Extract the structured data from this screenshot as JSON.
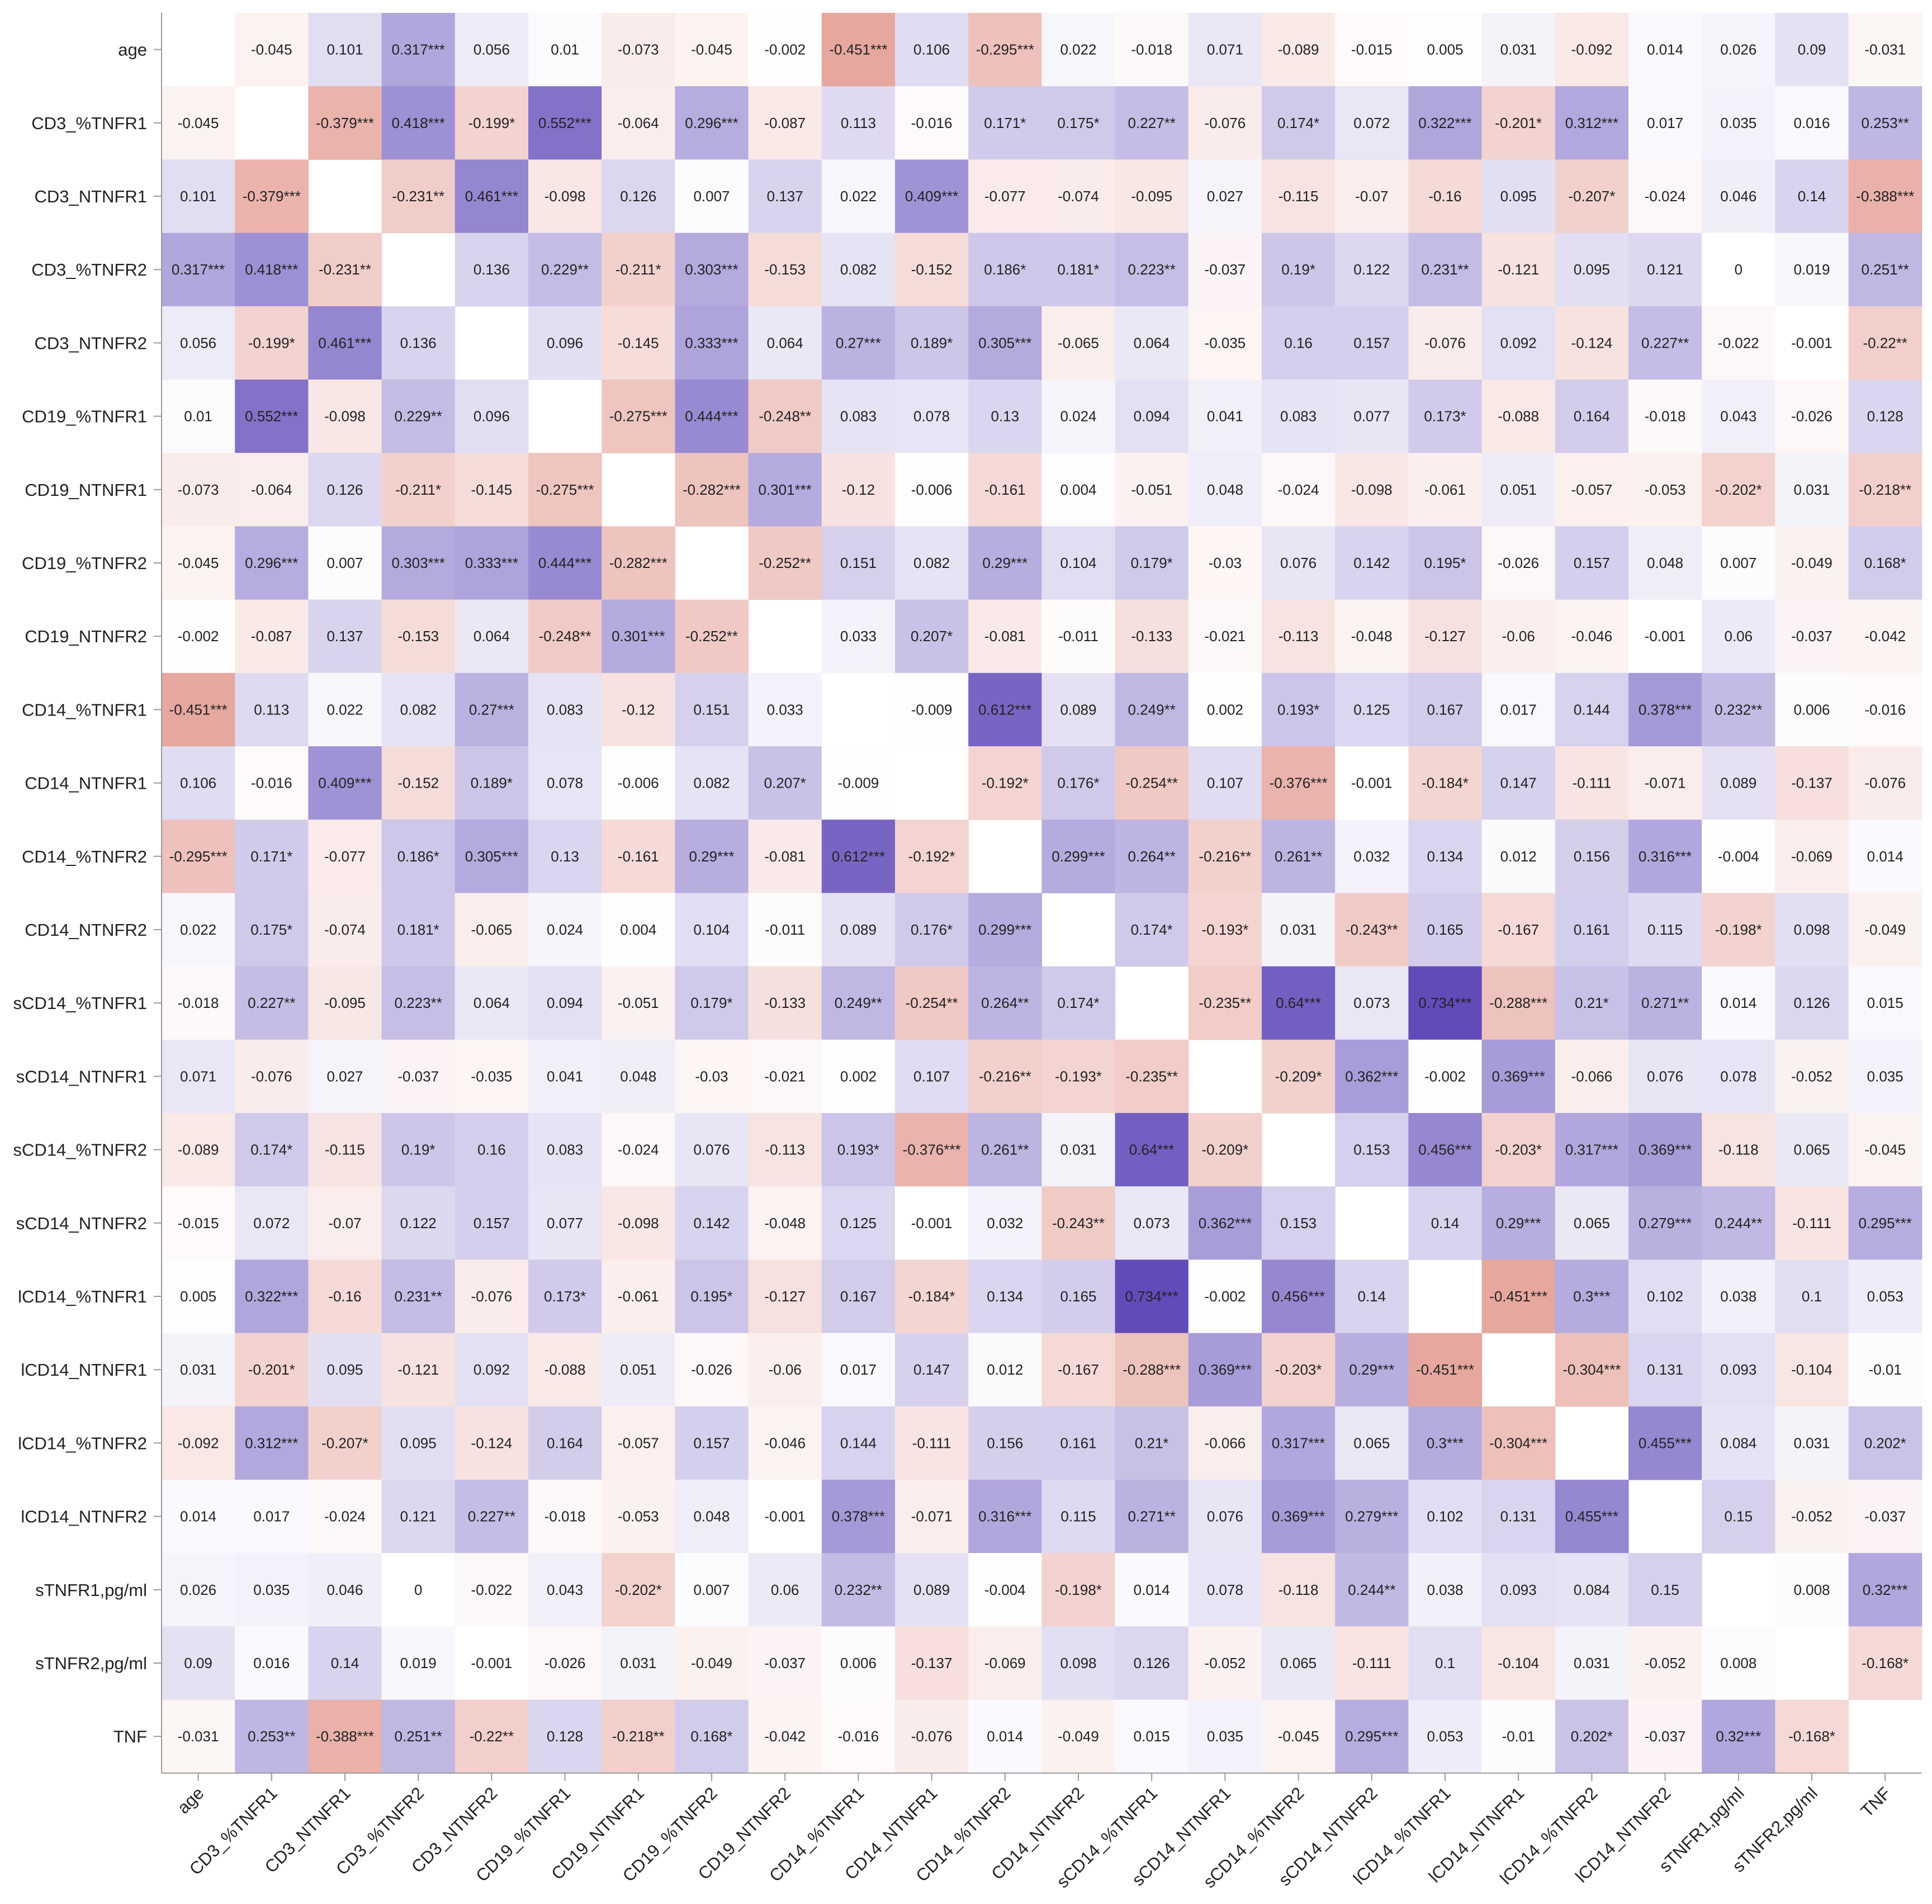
{
  "chart_data": {
    "type": "heatmap",
    "title": "",
    "xlabel": "",
    "ylabel": "",
    "labels": [
      "age",
      "CD3_%TNFR1",
      "CD3_NTNFR1",
      "CD3_%TNFR2",
      "CD3_NTNFR2",
      "CD19_%TNFR1",
      "CD19_NTNFR1",
      "CD19_%TNFR2",
      "CD19_NTNFR2",
      "CD14_%TNFR1",
      "CD14_NTNFR1",
      "CD14_%TNFR2",
      "CD14_NTNFR2",
      "sCD14_%TNFR1",
      "sCD14_NTNFR1",
      "sCD14_%TNFR2",
      "sCD14_NTNFR2",
      "lCD14_%TNFR1",
      "lCD14_NTNFR1",
      "lCD14_%TNFR2",
      "lCD14_NTNFR2",
      "sTNFR1,pg/ml",
      "sTNFR2,pg/ml",
      "TNF"
    ],
    "matrix": [
      [
        "",
        "-0.045",
        "0.101",
        "0.317***",
        "0.056",
        "0.01",
        "-0.073",
        "-0.045",
        "-0.002",
        "-0.451***",
        "0.106",
        "-0.295***",
        "0.022",
        "-0.018",
        "0.071",
        "-0.089",
        "-0.015",
        "0.005",
        "0.031",
        "-0.092",
        "0.014",
        "0.026",
        "0.09",
        "-0.031"
      ],
      [
        "-0.045",
        "",
        "-0.379***",
        "0.418***",
        "-0.199*",
        "0.552***",
        "-0.064",
        "0.296***",
        "-0.087",
        "0.113",
        "-0.016",
        "0.171*",
        "0.175*",
        "0.227**",
        "-0.076",
        "0.174*",
        "0.072",
        "0.322***",
        "-0.201*",
        "0.312***",
        "0.017",
        "0.035",
        "0.016",
        "0.253**"
      ],
      [
        "0.101",
        "-0.379***",
        "",
        "-0.231**",
        "0.461***",
        "-0.098",
        "0.126",
        "0.007",
        "0.137",
        "0.022",
        "0.409***",
        "-0.077",
        "-0.074",
        "-0.095",
        "0.027",
        "-0.115",
        "-0.07",
        "-0.16",
        "0.095",
        "-0.207*",
        "-0.024",
        "0.046",
        "0.14",
        "-0.388***"
      ],
      [
        "0.317***",
        "0.418***",
        "-0.231**",
        "",
        "0.136",
        "0.229**",
        "-0.211*",
        "0.303***",
        "-0.153",
        "0.082",
        "-0.152",
        "0.186*",
        "0.181*",
        "0.223**",
        "-0.037",
        "0.19*",
        "0.122",
        "0.231**",
        "-0.121",
        "0.095",
        "0.121",
        "0",
        "0.019",
        "0.251**"
      ],
      [
        "0.056",
        "-0.199*",
        "0.461***",
        "0.136",
        "",
        "0.096",
        "-0.145",
        "0.333***",
        "0.064",
        "0.27***",
        "0.189*",
        "0.305***",
        "-0.065",
        "0.064",
        "-0.035",
        "0.16",
        "0.157",
        "-0.076",
        "0.092",
        "-0.124",
        "0.227**",
        "-0.022",
        "-0.001",
        "-0.22**"
      ],
      [
        "0.01",
        "0.552***",
        "-0.098",
        "0.229**",
        "0.096",
        "",
        "-0.275***",
        "0.444***",
        "-0.248**",
        "0.083",
        "0.078",
        "0.13",
        "0.024",
        "0.094",
        "0.041",
        "0.083",
        "0.077",
        "0.173*",
        "-0.088",
        "0.164",
        "-0.018",
        "0.043",
        "-0.026",
        "0.128"
      ],
      [
        "-0.073",
        "-0.064",
        "0.126",
        "-0.211*",
        "-0.145",
        "-0.275***",
        "",
        "-0.282***",
        "0.301***",
        "-0.12",
        "-0.006",
        "-0.161",
        "0.004",
        "-0.051",
        "0.048",
        "-0.024",
        "-0.098",
        "-0.061",
        "0.051",
        "-0.057",
        "-0.053",
        "-0.202*",
        "0.031",
        "-0.218**"
      ],
      [
        "-0.045",
        "0.296***",
        "0.007",
        "0.303***",
        "0.333***",
        "0.444***",
        "-0.282***",
        "",
        "-0.252**",
        "0.151",
        "0.082",
        "0.29***",
        "0.104",
        "0.179*",
        "-0.03",
        "0.076",
        "0.142",
        "0.195*",
        "-0.026",
        "0.157",
        "0.048",
        "0.007",
        "-0.049",
        "0.168*"
      ],
      [
        "-0.002",
        "-0.087",
        "0.137",
        "-0.153",
        "0.064",
        "-0.248**",
        "0.301***",
        "-0.252**",
        "",
        "0.033",
        "0.207*",
        "-0.081",
        "-0.011",
        "-0.133",
        "-0.021",
        "-0.113",
        "-0.048",
        "-0.127",
        "-0.06",
        "-0.046",
        "-0.001",
        "0.06",
        "-0.037",
        "-0.042"
      ],
      [
        "-0.451***",
        "0.113",
        "0.022",
        "0.082",
        "0.27***",
        "0.083",
        "-0.12",
        "0.151",
        "0.033",
        "",
        "-0.009",
        "0.612***",
        "0.089",
        "0.249**",
        "0.002",
        "0.193*",
        "0.125",
        "0.167",
        "0.017",
        "0.144",
        "0.378***",
        "0.232**",
        "0.006",
        "-0.016"
      ],
      [
        "0.106",
        "-0.016",
        "0.409***",
        "-0.152",
        "0.189*",
        "0.078",
        "-0.006",
        "0.082",
        "0.207*",
        "-0.009",
        "",
        "-0.192*",
        "0.176*",
        "-0.254**",
        "0.107",
        "-0.376***",
        "-0.001",
        "-0.184*",
        "0.147",
        "-0.111",
        "-0.071",
        "0.089",
        "-0.137",
        "-0.076"
      ],
      [
        "-0.295***",
        "0.171*",
        "-0.077",
        "0.186*",
        "0.305***",
        "0.13",
        "-0.161",
        "0.29***",
        "-0.081",
        "0.612***",
        "-0.192*",
        "",
        "0.299***",
        "0.264**",
        "-0.216**",
        "0.261**",
        "0.032",
        "0.134",
        "0.012",
        "0.156",
        "0.316***",
        "-0.004",
        "-0.069",
        "0.014"
      ],
      [
        "0.022",
        "0.175*",
        "-0.074",
        "0.181*",
        "-0.065",
        "0.024",
        "0.004",
        "0.104",
        "-0.011",
        "0.089",
        "0.176*",
        "0.299***",
        "",
        "0.174*",
        "-0.193*",
        "0.031",
        "-0.243**",
        "0.165",
        "-0.167",
        "0.161",
        "0.115",
        "-0.198*",
        "0.098",
        "-0.049"
      ],
      [
        "-0.018",
        "0.227**",
        "-0.095",
        "0.223**",
        "0.064",
        "0.094",
        "-0.051",
        "0.179*",
        "-0.133",
        "0.249**",
        "-0.254**",
        "0.264**",
        "0.174*",
        "",
        "-0.235**",
        "0.64***",
        "0.073",
        "0.734***",
        "-0.288***",
        "0.21*",
        "0.271**",
        "0.014",
        "0.126",
        "0.015"
      ],
      [
        "0.071",
        "-0.076",
        "0.027",
        "-0.037",
        "-0.035",
        "0.041",
        "0.048",
        "-0.03",
        "-0.021",
        "0.002",
        "0.107",
        "-0.216**",
        "-0.193*",
        "-0.235**",
        "",
        "-0.209*",
        "0.362***",
        "-0.002",
        "0.369***",
        "-0.066",
        "0.076",
        "0.078",
        "-0.052",
        "0.035"
      ],
      [
        "-0.089",
        "0.174*",
        "-0.115",
        "0.19*",
        "0.16",
        "0.083",
        "-0.024",
        "0.076",
        "-0.113",
        "0.193*",
        "-0.376***",
        "0.261**",
        "0.031",
        "0.64***",
        "-0.209*",
        "",
        "0.153",
        "0.456***",
        "-0.203*",
        "0.317***",
        "0.369***",
        "-0.118",
        "0.065",
        "-0.045"
      ],
      [
        "-0.015",
        "0.072",
        "-0.07",
        "0.122",
        "0.157",
        "0.077",
        "-0.098",
        "0.142",
        "-0.048",
        "0.125",
        "-0.001",
        "0.032",
        "-0.243**",
        "0.073",
        "0.362***",
        "0.153",
        "",
        "0.14",
        "0.29***",
        "0.065",
        "0.279***",
        "0.244**",
        "-0.111",
        "0.295***"
      ],
      [
        "0.005",
        "0.322***",
        "-0.16",
        "0.231**",
        "-0.076",
        "0.173*",
        "-0.061",
        "0.195*",
        "-0.127",
        "0.167",
        "-0.184*",
        "0.134",
        "0.165",
        "0.734***",
        "-0.002",
        "0.456***",
        "0.14",
        "",
        "-0.451***",
        "0.3***",
        "0.102",
        "0.038",
        "0.1",
        "0.053"
      ],
      [
        "0.031",
        "-0.201*",
        "0.095",
        "-0.121",
        "0.092",
        "-0.088",
        "0.051",
        "-0.026",
        "-0.06",
        "0.017",
        "0.147",
        "0.012",
        "-0.167",
        "-0.288***",
        "0.369***",
        "-0.203*",
        "0.29***",
        "-0.451***",
        "",
        "-0.304***",
        "0.131",
        "0.093",
        "-0.104",
        "-0.01"
      ],
      [
        "-0.092",
        "0.312***",
        "-0.207*",
        "0.095",
        "-0.124",
        "0.164",
        "-0.057",
        "0.157",
        "-0.046",
        "0.144",
        "-0.111",
        "0.156",
        "0.161",
        "0.21*",
        "-0.066",
        "0.317***",
        "0.065",
        "0.3***",
        "-0.304***",
        "",
        "0.455***",
        "0.084",
        "0.031",
        "0.202*"
      ],
      [
        "0.014",
        "0.017",
        "-0.024",
        "0.121",
        "0.227**",
        "-0.018",
        "-0.053",
        "0.048",
        "-0.001",
        "0.378***",
        "-0.071",
        "0.316***",
        "0.115",
        "0.271**",
        "0.076",
        "0.369***",
        "0.279***",
        "0.102",
        "0.131",
        "0.455***",
        "",
        "0.15",
        "-0.052",
        "-0.037"
      ],
      [
        "0.026",
        "0.035",
        "0.046",
        "0",
        "-0.022",
        "0.043",
        "-0.202*",
        "0.007",
        "0.06",
        "0.232**",
        "0.089",
        "-0.004",
        "-0.198*",
        "0.014",
        "0.078",
        "-0.118",
        "0.244**",
        "0.038",
        "0.093",
        "0.084",
        "0.15",
        "",
        "0.008",
        "0.32***"
      ],
      [
        "0.09",
        "0.016",
        "0.14",
        "0.019",
        "-0.001",
        "-0.026",
        "0.031",
        "-0.049",
        "-0.037",
        "0.006",
        "-0.137",
        "-0.069",
        "0.098",
        "0.126",
        "-0.052",
        "0.065",
        "-0.111",
        "0.1",
        "-0.104",
        "0.031",
        "-0.052",
        "0.008",
        "",
        "-0.168*"
      ],
      [
        "-0.031",
        "0.253**",
        "-0.388***",
        "0.251**",
        "-0.22**",
        "0.128",
        "-0.218**",
        "0.168*",
        "-0.042",
        "-0.016",
        "-0.076",
        "0.014",
        "-0.049",
        "0.015",
        "0.035",
        "-0.045",
        "0.295***",
        "0.053",
        "-0.01",
        "0.202*",
        "-0.037",
        "0.32***",
        "-0.168*",
        ""
      ]
    ],
    "value_range": [
      -0.75,
      0.75
    ],
    "colors": {
      "negative": "#d9776b",
      "positive": "#5e48b8",
      "neutral": "#ffffff",
      "text": "#222222",
      "tick": "#9a9a9a"
    },
    "diagonal": "blank",
    "legend": "none"
  }
}
